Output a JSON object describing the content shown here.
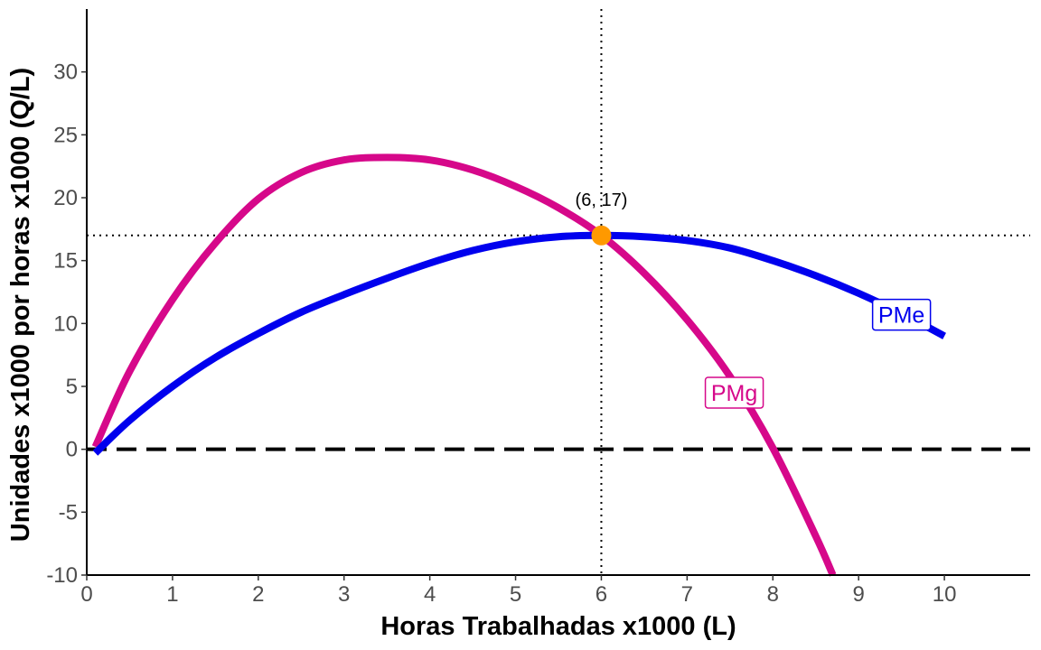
{
  "chart_data": {
    "type": "line",
    "title": "",
    "xlabel": "Horas Trabalhadas x1000 (L)",
    "ylabel": "Unidades x1000 por horas x1000 (Q/L)",
    "xlim": [
      0,
      11
    ],
    "ylim": [
      -10,
      35
    ],
    "x_ticks": [
      0,
      1,
      2,
      3,
      4,
      5,
      6,
      7,
      8,
      9,
      10
    ],
    "y_ticks": [
      -10,
      -5,
      0,
      5,
      10,
      15,
      20,
      25,
      30
    ],
    "grid": false,
    "series": [
      {
        "name": "PMg",
        "color": "#D6088A",
        "x": [
          0.1,
          0.5,
          1,
          1.5,
          2,
          2.5,
          3,
          3.5,
          4,
          4.5,
          5,
          5.5,
          6,
          6.5,
          7,
          7.5,
          8,
          8.5,
          8.7
        ],
        "y": [
          0.2,
          6.2,
          11.9,
          16.4,
          19.9,
          22.0,
          23.0,
          23.2,
          23.0,
          22.2,
          20.9,
          19.2,
          17.0,
          14.0,
          10.3,
          5.8,
          0.1,
          -6.9,
          -10.0
        ]
      },
      {
        "name": "PMe",
        "color": "#0000EE",
        "x": [
          0.1,
          0.5,
          1,
          1.5,
          2,
          2.5,
          3,
          3.5,
          4,
          4.5,
          5,
          5.5,
          6,
          6.5,
          7,
          7.5,
          8,
          8.5,
          9,
          9.5,
          10
        ],
        "y": [
          -0.3,
          2.3,
          5.0,
          7.3,
          9.2,
          10.9,
          12.3,
          13.6,
          14.8,
          15.8,
          16.5,
          16.9,
          17.0,
          16.9,
          16.6,
          16.0,
          15.0,
          13.8,
          12.4,
          10.8,
          9.0
        ]
      }
    ],
    "reference_lines": {
      "zero_line_y": 0,
      "vertical_x": 6,
      "horizontal_y": 17
    },
    "point": {
      "x": 6,
      "y": 17,
      "label": "(6, 17)",
      "color": "#FF9900"
    },
    "series_labels": [
      {
        "text": "PMe",
        "x": 9.5,
        "y": 10.7,
        "color": "#0000EE"
      },
      {
        "text": "PMg",
        "x": 7.55,
        "y": 4.5,
        "color": "#D6088A"
      }
    ]
  }
}
